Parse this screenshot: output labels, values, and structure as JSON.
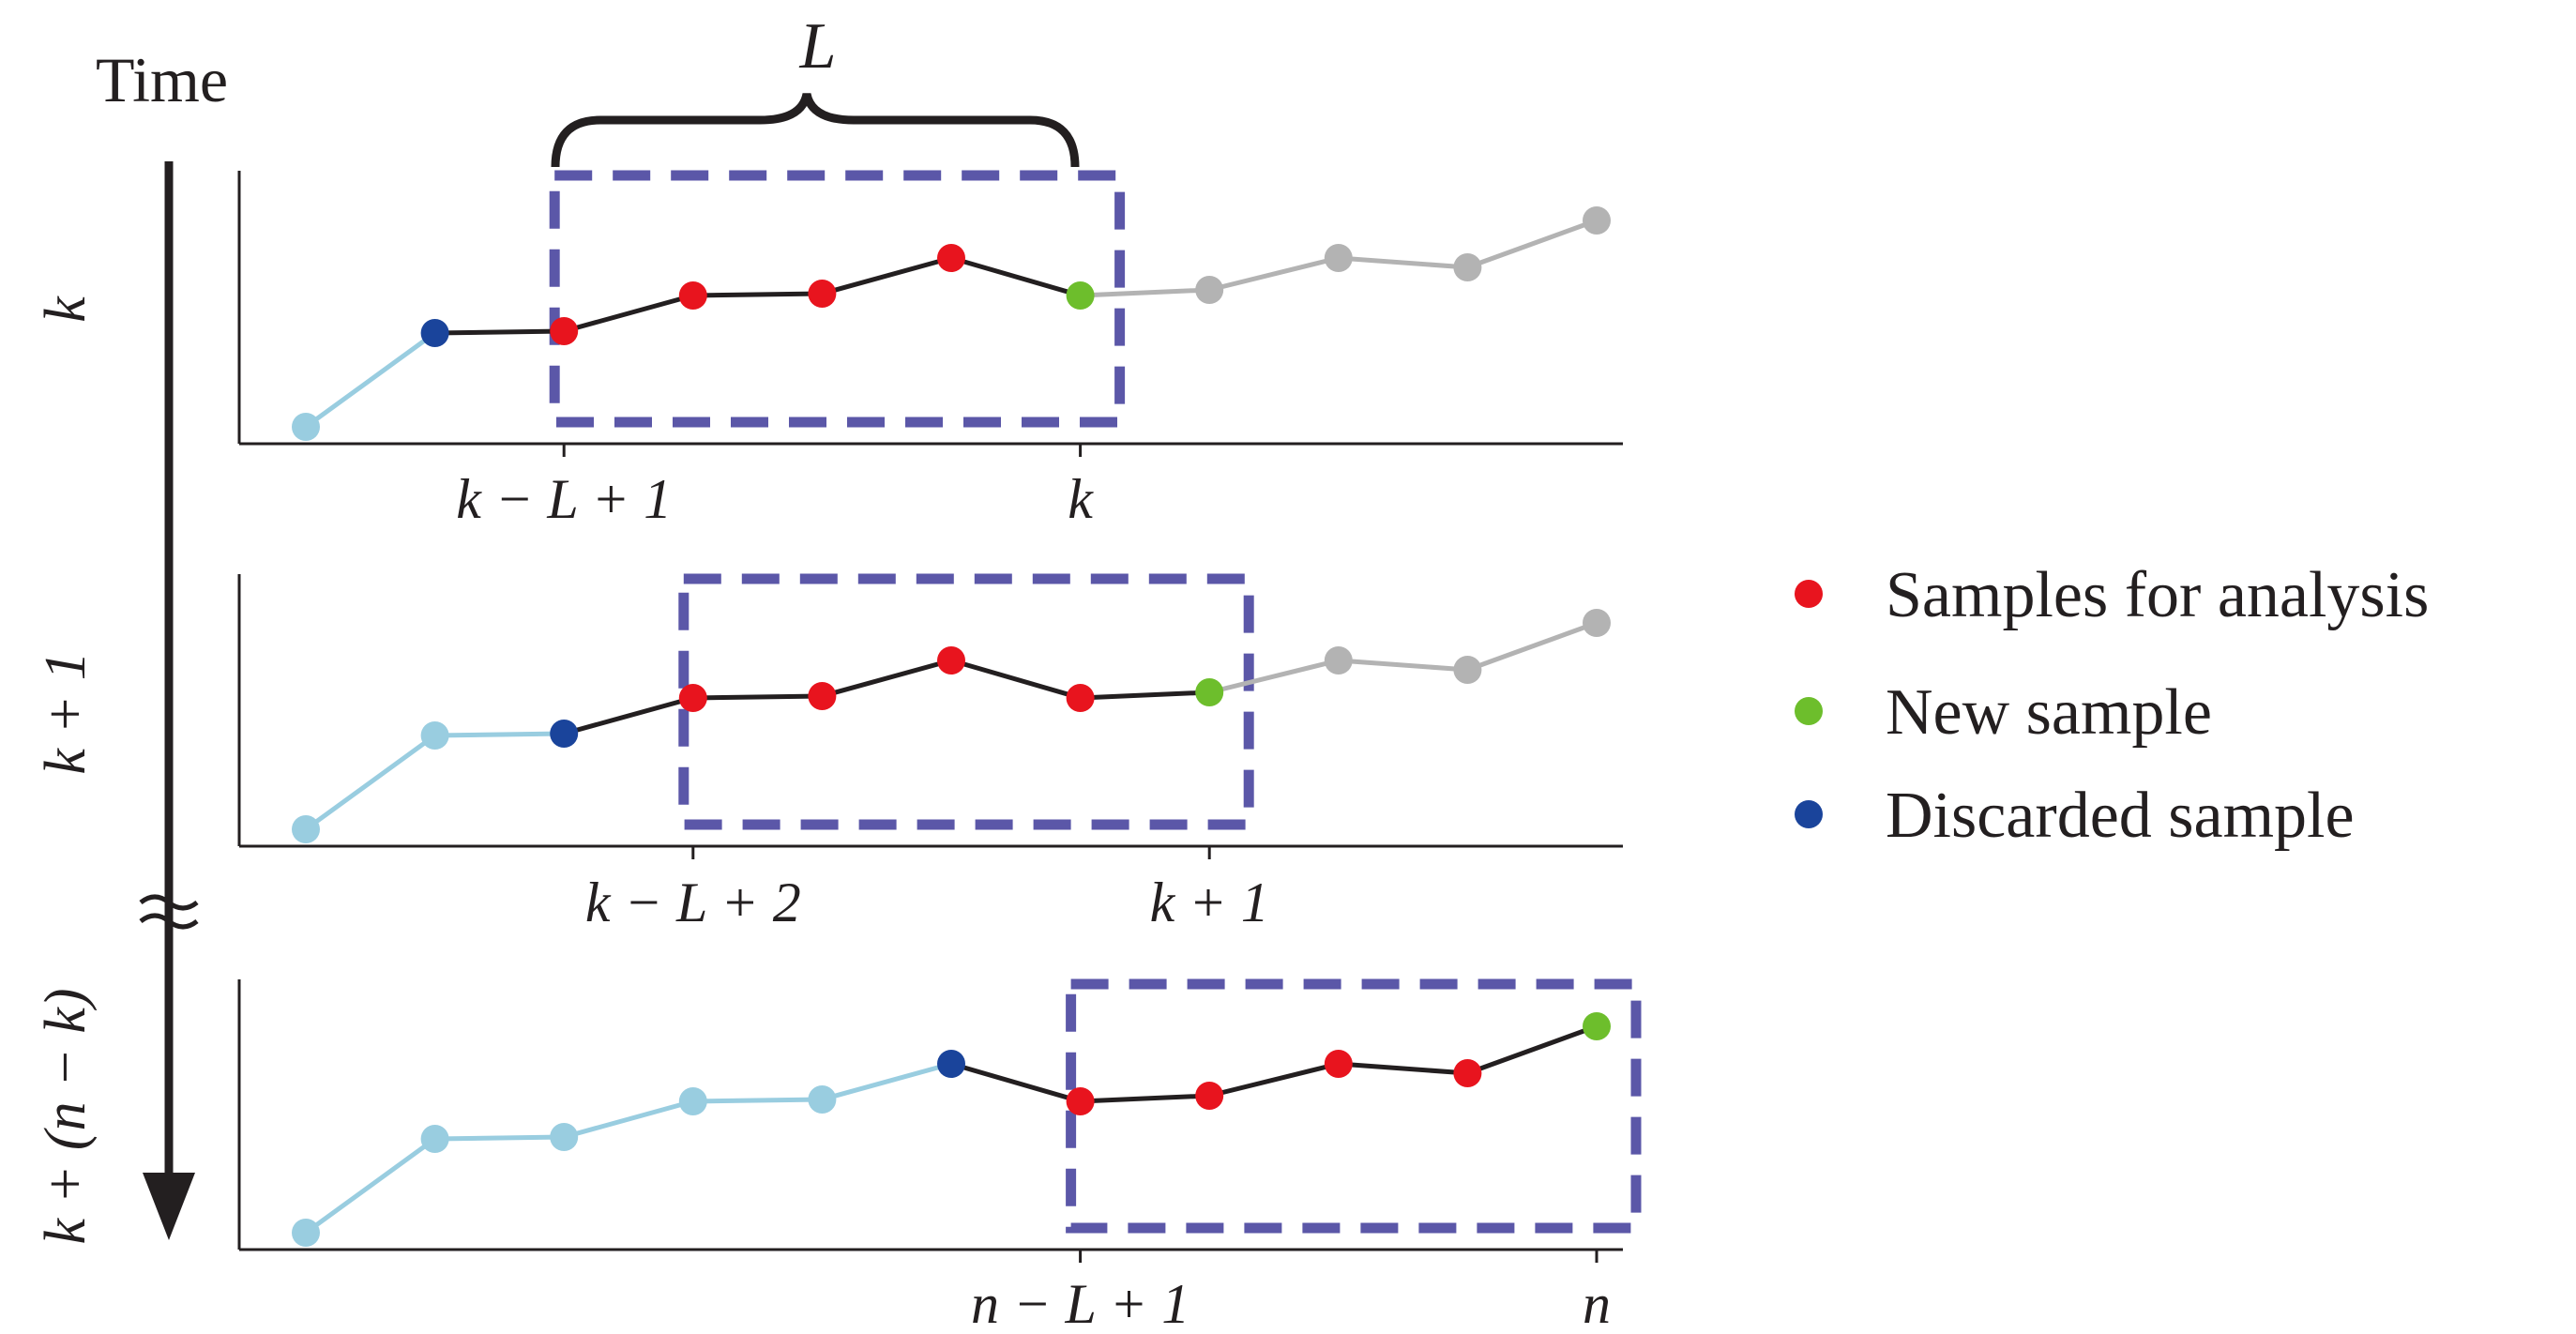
{
  "header": {
    "time_label": "Time",
    "window_length_label": "L"
  },
  "colors": {
    "analysis": "#e8141e",
    "new": "#6dbe2c",
    "discarded": "#1a449b",
    "past": "#99cde0",
    "future": "#b3b3b3",
    "window": "#5b57a8",
    "line": "#231f20"
  },
  "panels": [
    {
      "row_label": "k",
      "values": [
        1,
        6,
        6.1,
        8,
        8.1,
        10,
        8,
        8.3,
        10,
        9.5,
        12
      ],
      "roles": [
        "past",
        "discarded",
        "analysis",
        "analysis",
        "analysis",
        "analysis",
        "new",
        "future",
        "future",
        "future",
        "future"
      ],
      "window": [
        2,
        6
      ],
      "ticks": [
        {
          "index": 2,
          "label": "k − L + 1"
        },
        {
          "index": 6,
          "label": "k"
        }
      ]
    },
    {
      "row_label": "k + 1",
      "values": [
        1,
        6,
        6.1,
        8,
        8.1,
        10,
        8,
        8.3,
        10,
        9.5,
        12
      ],
      "roles": [
        "past",
        "past",
        "discarded",
        "analysis",
        "analysis",
        "analysis",
        "analysis",
        "new",
        "future",
        "future",
        "future"
      ],
      "window": [
        3,
        7
      ],
      "ticks": [
        {
          "index": 3,
          "label": "k − L + 2"
        },
        {
          "index": 7,
          "label": "k + 1"
        }
      ]
    },
    {
      "row_label": "k + (n − k)",
      "values": [
        1,
        6,
        6.1,
        8,
        8.1,
        10,
        8,
        8.3,
        10,
        9.5,
        12
      ],
      "roles": [
        "past",
        "past",
        "past",
        "past",
        "past",
        "discarded",
        "analysis",
        "analysis",
        "analysis",
        "analysis",
        "new"
      ],
      "window": [
        6,
        10
      ],
      "ticks": [
        {
          "index": 6,
          "label": "n − L + 1"
        },
        {
          "index": 10,
          "label": "n"
        }
      ]
    }
  ],
  "legend": [
    {
      "role": "analysis",
      "label": "Samples for analysis"
    },
    {
      "role": "new",
      "label": "New sample"
    },
    {
      "role": "discarded",
      "label": "Discarded sample"
    }
  ]
}
